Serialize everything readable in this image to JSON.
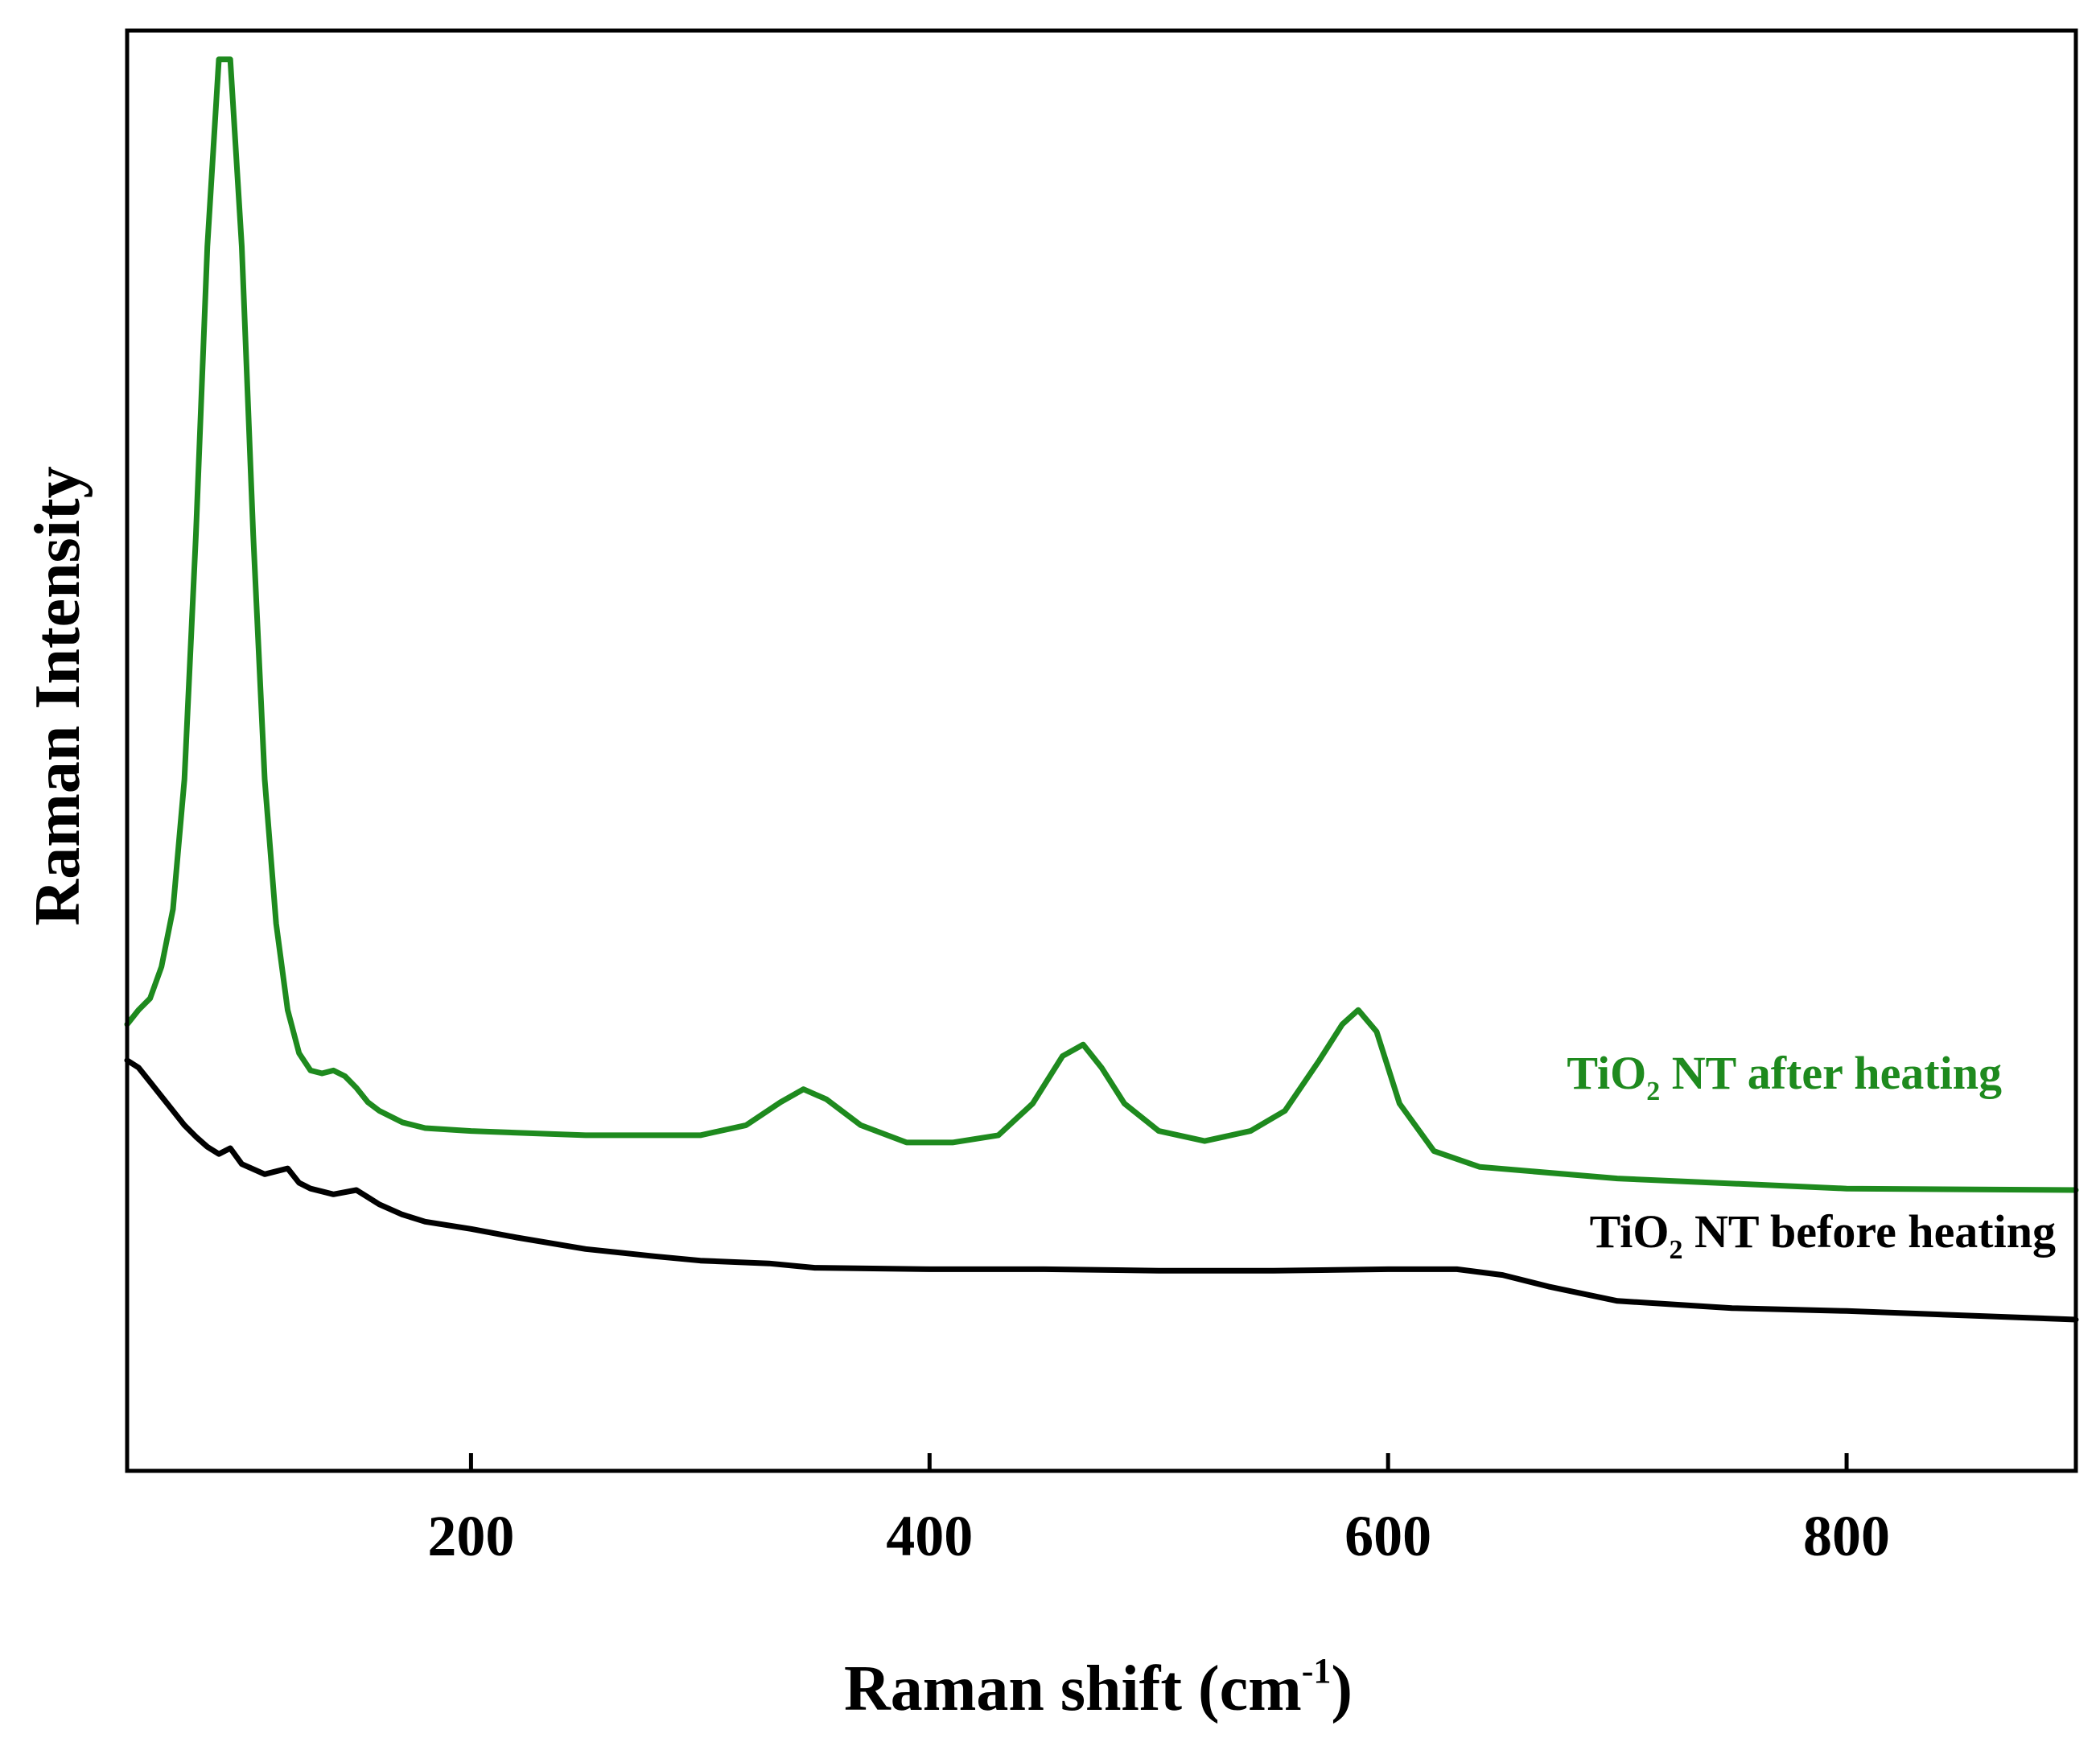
{
  "chart_data": {
    "type": "line",
    "title": "",
    "xlabel_main": "Raman shift (cm",
    "xlabel_sup": "-1",
    "xlabel_close": ")",
    "ylabel": "Raman Intensity",
    "xlim": [
      50,
      900
    ],
    "ylim": [
      0,
      100
    ],
    "x_ticks": [
      200,
      400,
      600,
      800
    ],
    "x_tick_labels": [
      "200",
      "400",
      "600",
      "800"
    ],
    "y_ticks_shown": false,
    "grid": false,
    "series": [
      {
        "name": "TiO2 NT after heating",
        "label_main": "TiO",
        "label_sub": "2",
        "label_rest": " NT after heating",
        "color": "#1e8a1e",
        "x": [
          50,
          55,
          60,
          65,
          70,
          75,
          80,
          85,
          90,
          95,
          100,
          105,
          110,
          115,
          120,
          125,
          130,
          135,
          140,
          145,
          150,
          155,
          160,
          170,
          180,
          200,
          250,
          300,
          320,
          335,
          345,
          355,
          370,
          390,
          410,
          430,
          445,
          458,
          467,
          475,
          485,
          500,
          520,
          540,
          555,
          570,
          580,
          587,
          595,
          605,
          620,
          640,
          700,
          800,
          900
        ],
        "y": [
          31.0,
          32.0,
          32.8,
          35.0,
          39.0,
          48.0,
          65.0,
          85.0,
          98.0,
          98.0,
          85.0,
          65.0,
          48.0,
          38.0,
          32.0,
          29.0,
          27.8,
          27.6,
          27.8,
          27.4,
          26.6,
          25.6,
          25.0,
          24.2,
          23.8,
          23.6,
          23.3,
          23.3,
          24.0,
          25.6,
          26.5,
          25.8,
          24.0,
          22.8,
          22.8,
          23.3,
          25.5,
          28.8,
          29.6,
          28.0,
          25.5,
          23.6,
          22.9,
          23.6,
          25.0,
          28.5,
          31.0,
          32.0,
          30.5,
          25.5,
          22.2,
          21.1,
          20.3,
          19.6,
          19.5
        ]
      },
      {
        "name": "TiO2 NT before heating",
        "label_main": "TiO",
        "label_sub": "2",
        "label_rest": " NT before heating",
        "color": "#000000",
        "x": [
          50,
          55,
          60,
          65,
          70,
          75,
          80,
          85,
          90,
          95,
          100,
          110,
          120,
          125,
          130,
          140,
          150,
          155,
          160,
          170,
          180,
          200,
          220,
          250,
          280,
          300,
          330,
          350,
          400,
          450,
          500,
          550,
          600,
          630,
          650,
          670,
          700,
          750,
          800,
          900
        ],
        "y": [
          28.5,
          28.0,
          27.0,
          26.0,
          25.0,
          24.0,
          23.2,
          22.5,
          22.0,
          22.4,
          21.3,
          20.6,
          21.0,
          20.0,
          19.6,
          19.2,
          19.5,
          19.0,
          18.5,
          17.8,
          17.3,
          16.8,
          16.2,
          15.4,
          14.9,
          14.6,
          14.4,
          14.1,
          14.0,
          14.0,
          13.9,
          13.9,
          14.0,
          14.0,
          13.6,
          12.8,
          11.8,
          11.3,
          11.1,
          10.5
        ]
      }
    ]
  }
}
